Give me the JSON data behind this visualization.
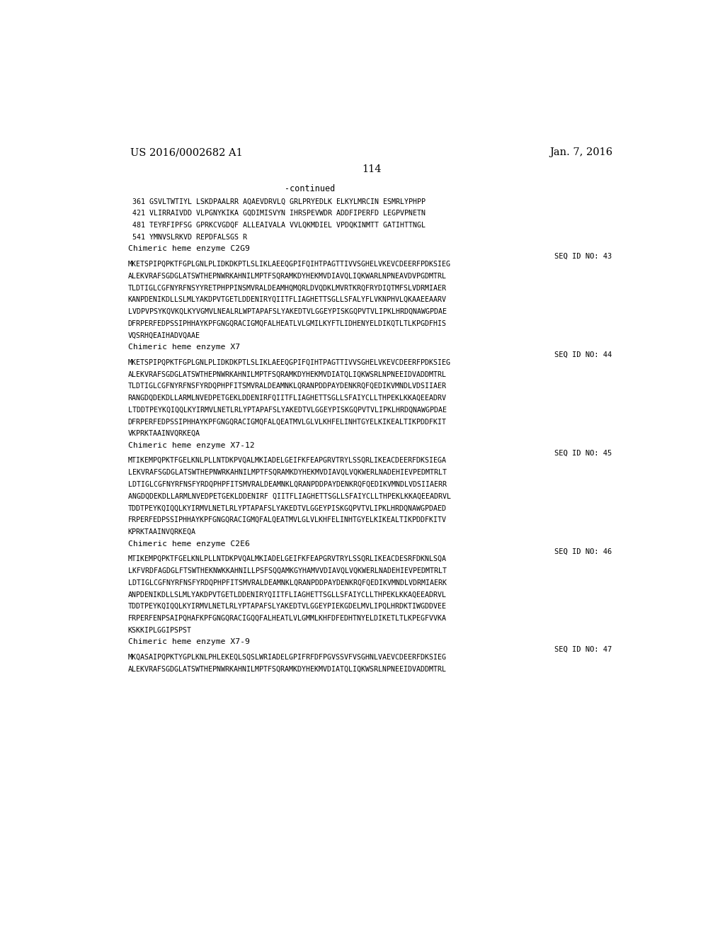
{
  "header_left": "US 2016/0002682 A1",
  "header_right": "Jan. 7, 2016",
  "page_number": "114",
  "continued": "-continued",
  "background_color": "#ffffff",
  "text_color": "#000000",
  "lines": [
    {
      "type": "seq_num",
      "text": " 361 GSVLTWTIYL LSKDPAALRR AQAEVDRVLQ GRLPRYEDLK ELKYLMRCIN ESMRLYPHPP"
    },
    {
      "type": "blank"
    },
    {
      "type": "seq_num",
      "text": " 421 VLIRRAIVDD VLPGNYKIKA GQDIMISVYN IHRSPEVWDR ADDFIPERFD LEGPVPNETN"
    },
    {
      "type": "blank"
    },
    {
      "type": "seq_num",
      "text": " 481 TEYRFIPFSG GPRKCVGDQF ALLEAIVALA VVLQKMDIEL VPDQKINMTT GATIHTTNGL"
    },
    {
      "type": "blank"
    },
    {
      "type": "seq_num",
      "text": " 541 YMNVSLRKVD REPDFALSGS R"
    },
    {
      "type": "blank"
    },
    {
      "type": "label",
      "text": "Chimeric heme enzyme C2G9"
    },
    {
      "type": "seq_id",
      "text": "SEQ ID NO: 43"
    },
    {
      "type": "sequence",
      "text": "MKETSPIPQPKTFGPLGNLPLIDKDKPTLSLIKLAEEQGPIFQIHTPAGTTIVVSGHELVKEVCDEERFPDKSIEG"
    },
    {
      "type": "blank"
    },
    {
      "type": "sequence",
      "text": "ALEKVRAFSGDGLATSWTHEPNWRKAHNILMPTFSQRAMKDYHEKMVDIAVQLIQKWARLNPNEAVDVPGDMTRL"
    },
    {
      "type": "blank"
    },
    {
      "type": "sequence",
      "text": "TLDTIGLCGFNYRFNSYYRETPHPPINSMVRALDEAMHQMQRLDVQDKLMVRTKRQFRYDIQTMFSLVDRMIAER"
    },
    {
      "type": "blank"
    },
    {
      "type": "sequence",
      "text": "KANPDENIKDLLSLMLYAKDPVTGETLDDENIRYQIITFLIAGHETTSGLLSFALYFLVKNPHVLQKAAEEAARV"
    },
    {
      "type": "blank"
    },
    {
      "type": "sequence",
      "text": "LVDPVPSYKQVKQLKYVGMVLNEALRLWPTAPAFSLYAKEDTVLGGEYPISKGQPVTVLIPKLHRDQNAWGPDAE"
    },
    {
      "type": "blank"
    },
    {
      "type": "sequence",
      "text": "DFRPERFEDPSSIPHHAYKPFGNGQRACIGMQFALHEATLVLGMILKYFTLIDHENYELDIKQTLTLKPGDFHIS"
    },
    {
      "type": "blank"
    },
    {
      "type": "sequence",
      "text": "VQSRHQEAIHADVQAAE"
    },
    {
      "type": "blank"
    },
    {
      "type": "label",
      "text": "Chimeric heme enzyme X7"
    },
    {
      "type": "seq_id",
      "text": "SEQ ID NO: 44"
    },
    {
      "type": "sequence",
      "text": "MKETSPIPQPKTFGPLGNLPLIDKDKPTLSLIKLAEEQGPIFQIHTPAGTTIVVSGHELVKEVCDEERFPDKSIEG"
    },
    {
      "type": "blank"
    },
    {
      "type": "sequence",
      "text": "ALEKVRAFSGDGLATSWTHEPNWRKAHNILMPTFSQRAMKDYHEKMVDIATQLIQKWSRLNPNEEIDVADDMTRL"
    },
    {
      "type": "blank"
    },
    {
      "type": "sequence",
      "text": "TLDTIGLCGFNYRFNSFYRDQPHPFITSMVRALDEAMNKLQRANPDDPAYDENKRQFQEDIKVMNDLVDSIIAER"
    },
    {
      "type": "blank"
    },
    {
      "type": "sequence",
      "text": "RANGDQDEKDLLARMLNVEDPETGEKLDDENIRFQIITFLIAGHETTSGLLSFAIYCLLTHPEKLKKAQEEADRV"
    },
    {
      "type": "blank"
    },
    {
      "type": "sequence",
      "text": "LTDDTPEYKQIQQLKYIRMVLNETLRLYPTAPAFSLYAKEDTVLGGEYPISKGQPVTVLIPKLHRDQNAWGPDAE"
    },
    {
      "type": "blank"
    },
    {
      "type": "sequence",
      "text": "DFRPERFEDPSSIPHHAYKPFGNGQRACIGMQFALQEATMVLGLVLKHFELINHTGYELKIKEALTIKPDDFKIT"
    },
    {
      "type": "blank"
    },
    {
      "type": "sequence",
      "text": "VKPRKTAAINVQRKEQA"
    },
    {
      "type": "blank"
    },
    {
      "type": "label",
      "text": "Chimeric heme enzyme X7-12"
    },
    {
      "type": "seq_id",
      "text": "SEQ ID NO: 45"
    },
    {
      "type": "sequence",
      "text": "MTIKEMPQPKTFGELKNLPLLNTDKPVQALMKIADELGEIFKFEAPGRVTRYLSSQRLIKEACDEERFDKSIEGA"
    },
    {
      "type": "blank"
    },
    {
      "type": "sequence",
      "text": "LEKVRAFSGDGLATSWTHEPNWRKAHNILMPTFSQRAMKDYHEKMVDIAVQLVQKWERLNADEHIEVPEDMTRLT"
    },
    {
      "type": "blank"
    },
    {
      "type": "sequence",
      "text": "LDTIGLCGFNYRFNSFYRDQPHPFITSMVRALDEAMNKLQRANPDDPAYDENKRQFQEDIKVMNDLVDSIIAERR"
    },
    {
      "type": "blank"
    },
    {
      "type": "sequence",
      "text": "ANGDQDEKDLLARMLNVEDPETGEKLDDENIRF QIITFLIAGHETTSGLLSFAIYCLLTHPEKLKKAQEEADRVL"
    },
    {
      "type": "blank"
    },
    {
      "type": "sequence",
      "text": "TDDTPEYKQIQQLKYIRMVLNETLRLYPTAPAFSLYAKEDTVLGGEYPISKGQPVTVLIPKLHRDQNAWGPDAED"
    },
    {
      "type": "blank"
    },
    {
      "type": "sequence",
      "text": "FRPERFEDPSSIPHHAYKPFGNGQRACIGMQFALQEATMVLGLVLKHFELINHTGYELKIKEALTIKPDDFKITV"
    },
    {
      "type": "blank"
    },
    {
      "type": "sequence",
      "text": "KPRKTAAINVQRKEQA"
    },
    {
      "type": "blank"
    },
    {
      "type": "label",
      "text": "Chimeric heme enzyme C2E6"
    },
    {
      "type": "seq_id",
      "text": "SEQ ID NO: 46"
    },
    {
      "type": "sequence",
      "text": "MTIKEMPQPKTFGELKNLPLLNTDKPVQALMKIADELGEIFKFEAPGRVTRYLSSQRLIKEACDESRFDKNLSQA"
    },
    {
      "type": "blank"
    },
    {
      "type": "sequence",
      "text": "LKFVRDFAGDGLFTSWTHEKNWKKAHNILLPSFSQQAMKGYHAMVVDIAVQLVQKWERLNADEHIEVPEDMTRLT"
    },
    {
      "type": "blank"
    },
    {
      "type": "sequence",
      "text": "LDTIGLCGFNYRFNSFYRDQPHPFITSMVRALDEAMNKLQRANPDDPAYDENKRQFQEDIKVMNDLVDRMIAERK"
    },
    {
      "type": "blank"
    },
    {
      "type": "sequence",
      "text": "ANPDENIKDLLSLMLYAKDPVTGETLDDENIRYQIITFLIAGHETTSGLLSFAIYCLLTHPEKLKKAQEEADRVL"
    },
    {
      "type": "blank"
    },
    {
      "type": "sequence",
      "text": "TDDTPEYKQIQQLKYIRMVLNETLRLYPTAPAFSLYAKEDTVLGGEYPIEKGDELMVLIPQLHRDKTIWGDDVEE"
    },
    {
      "type": "blank"
    },
    {
      "type": "sequence",
      "text": "FRPERFENPSAIPQHAFKPFGNGQRACIGQQFALHEATLVLGMMLKHFDFEDHTNYELDIKETLTLKPEGFVVKA"
    },
    {
      "type": "blank"
    },
    {
      "type": "sequence",
      "text": "KSKKIPLGGIPSPST"
    },
    {
      "type": "blank"
    },
    {
      "type": "label",
      "text": "Chimeric heme enzyme X7-9"
    },
    {
      "type": "seq_id",
      "text": "SEQ ID NO: 47"
    },
    {
      "type": "sequence",
      "text": "MKQASAIPQPKTYGPLKNLPHLEKEQLSQSLWRIADELGPIFRFDFPGVSSVFVSGHNLVAEVCDEERFDKSIEG"
    },
    {
      "type": "blank"
    },
    {
      "type": "sequence",
      "text": "ALEKVRAFSGDGLATSWTHEPNWRKAHNILMPTFSQRAMKDYHEKMVDIATQLIQKWSRLNPNEEIDVADDMTRL"
    }
  ]
}
